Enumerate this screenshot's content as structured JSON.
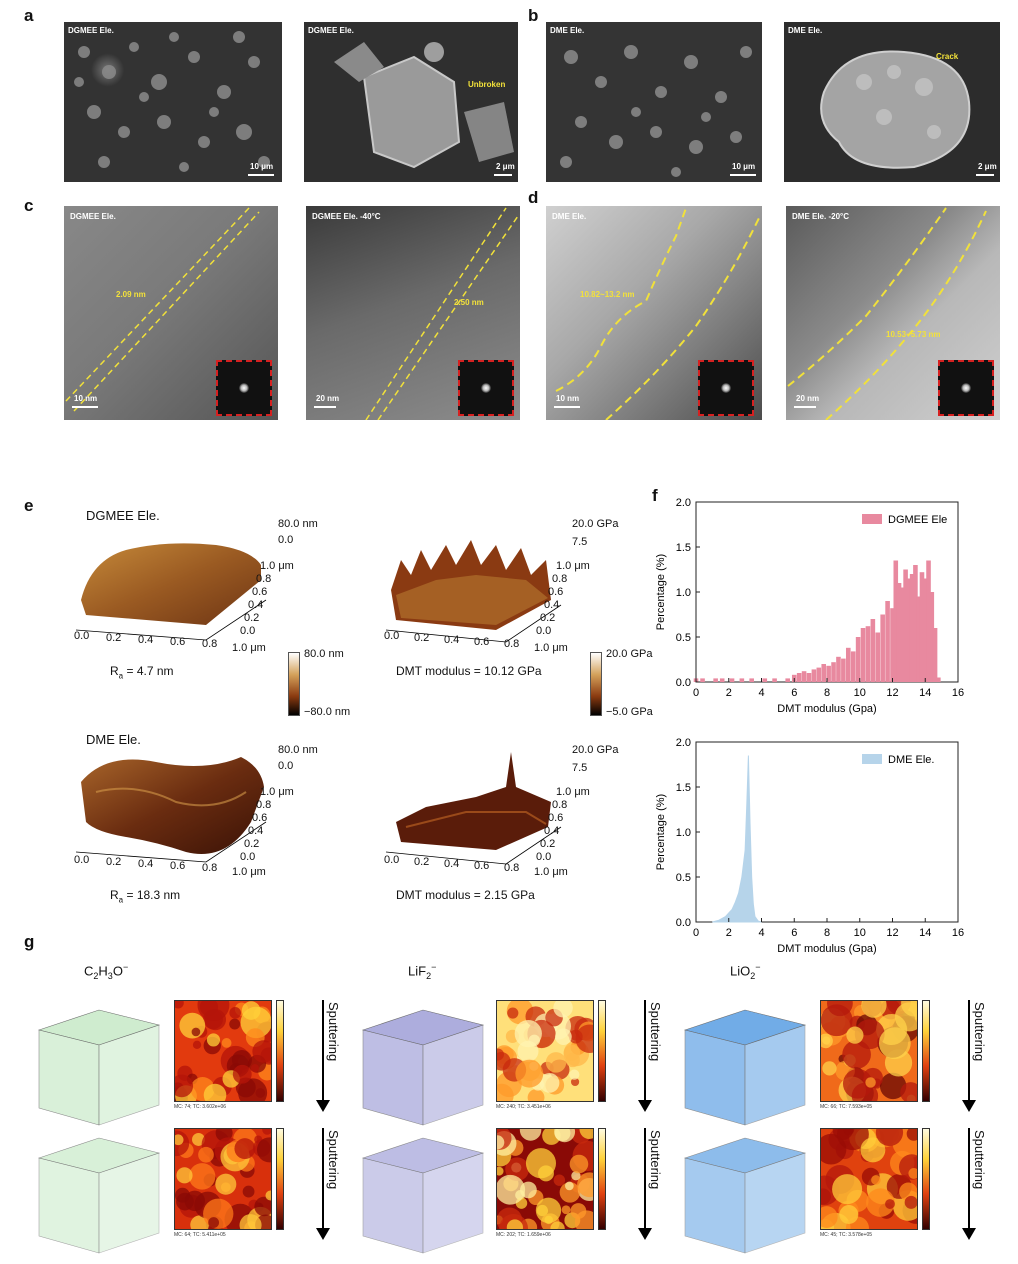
{
  "panel_labels": {
    "a": "a",
    "b": "b",
    "c": "c",
    "d": "d",
    "e": "e",
    "f": "f",
    "g": "g"
  },
  "sem": {
    "a1": {
      "label": "DGMEE Ele.",
      "scale": "10 μm"
    },
    "a2": {
      "label": "DGMEE Ele.",
      "scale": "2 μm",
      "annotation": "Unbroken"
    },
    "b1": {
      "label": "DME Ele.",
      "scale": "10 μm"
    },
    "b2": {
      "label": "DME Ele.",
      "scale": "2 μm",
      "annotation": "Crack"
    }
  },
  "tem": {
    "c1": {
      "label": "DGMEE Ele.",
      "thickness": "2.09 nm",
      "scale": "10 nm"
    },
    "c2": {
      "label": "DGMEE Ele. -40°C",
      "thickness": "2.50 nm",
      "scale": "20 nm"
    },
    "d1": {
      "label": "DME Ele.",
      "thickness": "10.82~13.2 nm",
      "scale": "10 nm"
    },
    "d2": {
      "label": "DME Ele. -20°C",
      "thickness": "10.53~5.73 nm",
      "scale": "20 nm"
    }
  },
  "afm": {
    "top_title": "DGMEE Ele.",
    "bottom_title": "DME Ele.",
    "height_top": "80.0 nm",
    "height_zero": "0.0",
    "modulus_top": "20.0 GPa",
    "modulus_mid": "7.5",
    "y_ticks": [
      "1.0 μm",
      "0.8",
      "0.6",
      "0.4",
      "0.2",
      "0.0"
    ],
    "x_ticks": [
      "0.0",
      "0.2",
      "0.4",
      "0.6",
      "0.8",
      "1.0 μm"
    ],
    "ra_top": "4.7 nm",
    "ra_bottom": "18.3 nm",
    "ra_prefix": "R",
    "ra_sub": "a",
    "dmt_top": "DMT modulus = 10.12 GPa",
    "dmt_bottom": "DMT modulus = 2.15 GPa",
    "cbar_height_max": "80.0 nm",
    "cbar_height_min": "−80.0 nm",
    "cbar_mod_max": "20.0 GPa",
    "cbar_mod_min": "−5.0 GPa",
    "colors": {
      "surface_light": "#c98a3a",
      "surface_dark": "#5a2410"
    }
  },
  "chart_data": [
    {
      "type": "bar",
      "series": [
        {
          "name": "DGMEE Ele",
          "color": "#e8899f"
        }
      ],
      "xlabel": "DMT modulus (Gpa)",
      "ylabel": "Percentage (%)",
      "xlim": [
        0,
        16
      ],
      "ylim": [
        0,
        2.0
      ],
      "x_ticks": [
        "0",
        "2",
        "4",
        "6",
        "8",
        "10",
        "12",
        "14",
        "16"
      ],
      "y_ticks": [
        "0.0",
        "0.5",
        "1.0",
        "1.5",
        "2.0"
      ],
      "legend_position": "top-right",
      "x": [
        0.0,
        0.4,
        1.2,
        1.6,
        2.2,
        2.8,
        3.4,
        4.2,
        4.8,
        5.6,
        6.0,
        6.3,
        6.6,
        6.9,
        7.2,
        7.5,
        7.8,
        8.1,
        8.4,
        8.7,
        9.0,
        9.3,
        9.6,
        9.9,
        10.2,
        10.5,
        10.8,
        11.1,
        11.4,
        11.7,
        12.0,
        12.2,
        12.4,
        12.6,
        12.8,
        13.0,
        13.2,
        13.4,
        13.6,
        13.8,
        14.0,
        14.2,
        14.4,
        14.6,
        14.8
      ],
      "values": [
        0.04,
        0.04,
        0.04,
        0.04,
        0.04,
        0.04,
        0.04,
        0.04,
        0.04,
        0.04,
        0.08,
        0.1,
        0.12,
        0.1,
        0.14,
        0.16,
        0.2,
        0.18,
        0.22,
        0.28,
        0.26,
        0.38,
        0.34,
        0.5,
        0.6,
        0.62,
        0.7,
        0.55,
        0.75,
        0.9,
        0.82,
        1.35,
        1.1,
        1.05,
        1.25,
        1.15,
        1.2,
        1.3,
        0.95,
        1.22,
        1.15,
        1.35,
        1.0,
        0.6,
        0.05
      ]
    },
    {
      "type": "area",
      "series": [
        {
          "name": "DME Ele.",
          "color": "#b6d4ea"
        }
      ],
      "xlabel": "DMT modulus (Gpa)",
      "ylabel": "Percentage (%)",
      "xlim": [
        0,
        16
      ],
      "ylim": [
        0,
        2.0
      ],
      "x_ticks": [
        "0",
        "2",
        "4",
        "6",
        "8",
        "10",
        "12",
        "14",
        "16"
      ],
      "y_ticks": [
        "0.0",
        "0.5",
        "1.0",
        "1.5",
        "2.0"
      ],
      "legend_position": "top-right",
      "x": [
        1.0,
        1.4,
        1.8,
        2.0,
        2.2,
        2.4,
        2.6,
        2.8,
        3.0,
        3.1,
        3.2,
        3.3,
        3.4,
        3.5,
        3.6,
        3.8,
        4.0
      ],
      "values": [
        0.0,
        0.02,
        0.06,
        0.1,
        0.14,
        0.22,
        0.32,
        0.5,
        0.8,
        1.3,
        1.85,
        1.1,
        0.5,
        0.2,
        0.06,
        0.01,
        0.0
      ]
    }
  ],
  "tof": {
    "species": [
      {
        "name": "C",
        "formula": [
          "C",
          "2",
          "H",
          "3",
          "O",
          "−"
        ],
        "cube_color": "#cdeccd",
        "map_caption_top": "MC:   74;  TC: 3.602e+06",
        "map_caption_bottom": "MC:   64;  TC: 5.411e+05"
      },
      {
        "name": "LiF",
        "formula": [
          "LiF",
          "",
          "",
          "2",
          "",
          "−"
        ],
        "cube_color": "#a9a9dc",
        "map_caption_top": "MC:   240;  TC: 3.451e+06",
        "map_caption_bottom": "MC:   202;  TC: 1.659e+06"
      },
      {
        "name": "LiO",
        "formula": [
          "LiO",
          "",
          "",
          "2",
          "",
          "−"
        ],
        "cube_color": "#6aa8e6",
        "map_caption_top": "MC:   66;  TC: 7.593e+05",
        "map_caption_bottom": "MC:   45;  TC: 3.578e+05"
      }
    ],
    "arrow_label": "Sputtering"
  }
}
